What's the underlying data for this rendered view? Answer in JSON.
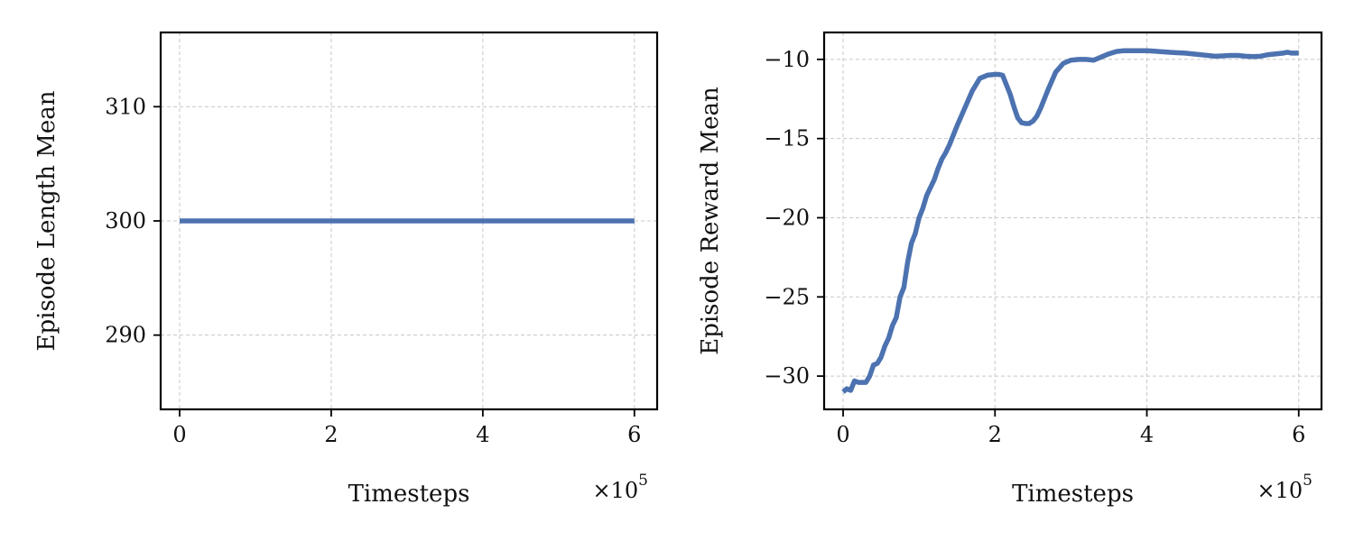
{
  "chart_data": [
    {
      "type": "line",
      "title": "",
      "xlabel": "Timesteps",
      "ylabel": "Episode Length Mean",
      "x_offset_label": "×10",
      "x_offset_exponent": "5",
      "xlim": [
        -0.25,
        6.3
      ],
      "ylim": [
        283.5,
        316.5
      ],
      "xticks": [
        0,
        2,
        4,
        6
      ],
      "yticks": [
        290,
        300,
        310
      ],
      "grid": true,
      "color": "#4c72b0",
      "series": [
        {
          "x": [
            0,
            0.5,
            1,
            1.5,
            2,
            2.5,
            3,
            3.5,
            4,
            4.5,
            5,
            5.5,
            6
          ],
          "y": [
            300,
            300,
            300,
            300,
            300,
            300,
            300,
            300,
            300,
            300,
            300,
            300,
            300
          ]
        }
      ]
    },
    {
      "type": "line",
      "title": "",
      "xlabel": "Timesteps",
      "ylabel": "Episode Reward Mean",
      "x_offset_label": "×10",
      "x_offset_exponent": "5",
      "xlim": [
        -0.25,
        6.3
      ],
      "ylim": [
        -32.1,
        -8.3
      ],
      "xticks": [
        0,
        2,
        4,
        6
      ],
      "yticks": [
        -30,
        -25,
        -20,
        -15,
        -10
      ],
      "ytick_labels": [
        "−30",
        "−25",
        "−20",
        "−15",
        "−10"
      ],
      "grid": true,
      "color": "#4c72b0",
      "series": [
        {
          "x": [
            0,
            0.05,
            0.1,
            0.15,
            0.2,
            0.25,
            0.3,
            0.35,
            0.4,
            0.45,
            0.5,
            0.55,
            0.6,
            0.65,
            0.7,
            0.75,
            0.8,
            0.85,
            0.9,
            0.95,
            1.0,
            1.05,
            1.1,
            1.15,
            1.2,
            1.25,
            1.3,
            1.35,
            1.4,
            1.5,
            1.6,
            1.7,
            1.8,
            1.9,
            2.0,
            2.05,
            2.1,
            2.15,
            2.2,
            2.25,
            2.3,
            2.35,
            2.4,
            2.45,
            2.5,
            2.55,
            2.6,
            2.65,
            2.7,
            2.8,
            2.9,
            3.0,
            3.1,
            3.2,
            3.3,
            3.4,
            3.5,
            3.6,
            3.7,
            3.8,
            3.9,
            4.0,
            4.1,
            4.2,
            4.3,
            4.4,
            4.5,
            4.6,
            4.7,
            4.8,
            4.9,
            5.0,
            5.1,
            5.2,
            5.3,
            5.4,
            5.5,
            5.6,
            5.7,
            5.8,
            5.85,
            5.9,
            6.0
          ],
          "y": [
            -31.0,
            -30.8,
            -30.9,
            -30.3,
            -30.4,
            -30.4,
            -30.4,
            -30.0,
            -29.3,
            -29.2,
            -28.8,
            -28.1,
            -27.6,
            -26.8,
            -26.3,
            -25.0,
            -24.4,
            -22.8,
            -21.6,
            -21.0,
            -20.0,
            -19.4,
            -18.6,
            -18.1,
            -17.6,
            -16.9,
            -16.3,
            -15.9,
            -15.4,
            -14.2,
            -13.1,
            -12.0,
            -11.2,
            -11.0,
            -10.95,
            -10.95,
            -11.0,
            -11.6,
            -12.2,
            -13.0,
            -13.7,
            -14.0,
            -14.05,
            -14.05,
            -13.9,
            -13.6,
            -13.1,
            -12.5,
            -11.9,
            -10.8,
            -10.25,
            -10.05,
            -10.0,
            -10.0,
            -10.05,
            -9.85,
            -9.65,
            -9.5,
            -9.45,
            -9.45,
            -9.45,
            -9.45,
            -9.48,
            -9.52,
            -9.55,
            -9.58,
            -9.6,
            -9.65,
            -9.7,
            -9.75,
            -9.8,
            -9.78,
            -9.75,
            -9.75,
            -9.8,
            -9.82,
            -9.8,
            -9.7,
            -9.65,
            -9.6,
            -9.55,
            -9.6,
            -9.6
          ]
        }
      ]
    }
  ]
}
